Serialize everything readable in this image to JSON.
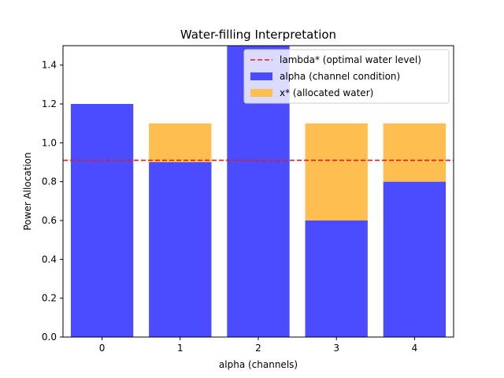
{
  "chart_data": {
    "type": "bar",
    "title": "Water-filling Interpretation",
    "xlabel": "alpha (channels)",
    "ylabel": "Power Allocation",
    "categories": [
      "0",
      "1",
      "2",
      "3",
      "4"
    ],
    "series": [
      {
        "name": "alpha (channel condition)",
        "values": [
          1.2,
          0.9,
          1.5,
          0.6,
          0.8
        ],
        "color": "#4b4bff",
        "stacked_base": true
      },
      {
        "name": "x* (allocated water)",
        "values": [
          0.0,
          0.2,
          0.0,
          0.5,
          0.3
        ],
        "color": "#ffbe50",
        "stacked_on": "alpha (channel condition)"
      }
    ],
    "reference_line": {
      "name": "lambda* (optimal water level)",
      "y": 0.91,
      "color": "#e41a1c",
      "style": "dashed"
    },
    "ylim": [
      0,
      1.5
    ],
    "yticks": [
      "0.0",
      "0.2",
      "0.4",
      "0.6",
      "0.8",
      "1.0",
      "1.2",
      "1.4"
    ],
    "xlim": [
      -0.5,
      4.5
    ],
    "grid": false,
    "legend": "top-right"
  }
}
